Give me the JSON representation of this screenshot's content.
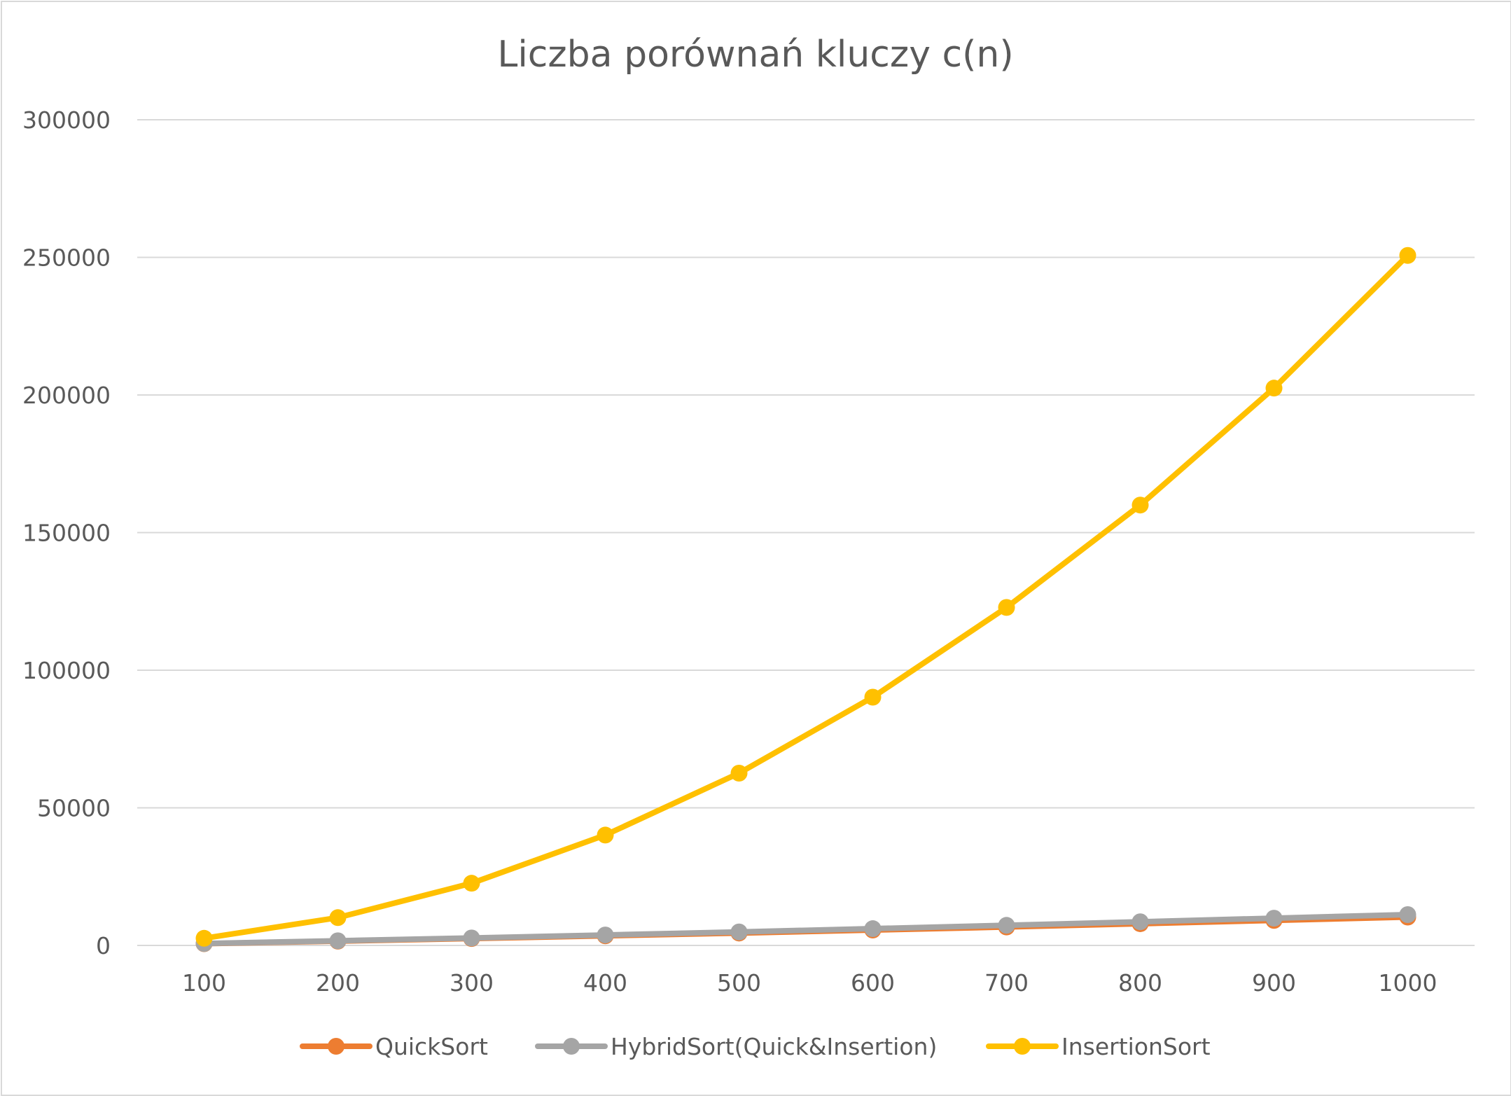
{
  "chart_data": {
    "type": "line",
    "title": "Liczba porównań kluczy c(n)",
    "xlabel": "",
    "ylabel": "",
    "categories": [
      "100",
      "200",
      "300",
      "400",
      "500",
      "600",
      "700",
      "800",
      "900",
      "1000"
    ],
    "y_ticks": [
      "0",
      "50000",
      "100000",
      "150000",
      "200000",
      "250000",
      "300000"
    ],
    "ylim": [
      0,
      300000
    ],
    "grid": true,
    "legend_position": "bottom",
    "series": [
      {
        "name": "QuickSort",
        "color": "#ED7D31",
        "values": [
          640,
          1550,
          2500,
          3500,
          4500,
          5600,
          6700,
          7900,
          9100,
          10300
        ]
      },
      {
        "name": "HybridSort(Quick&Insertion)",
        "color": "#A5A5A5",
        "values": [
          700,
          1700,
          2700,
          3800,
          4900,
          6100,
          7300,
          8600,
          9900,
          11200
        ]
      },
      {
        "name": "InsertionSort",
        "color": "#FFC000",
        "values": [
          2600,
          10100,
          22600,
          40100,
          62600,
          90200,
          122800,
          160000,
          202500,
          250700
        ]
      }
    ]
  }
}
